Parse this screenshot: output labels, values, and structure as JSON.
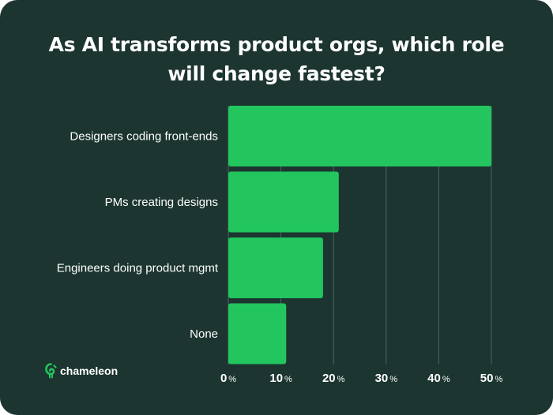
{
  "title": "As AI transforms product orgs, which role will change fastest?",
  "brand": {
    "name": "chameleon"
  },
  "colors": {
    "background": "#1c3530",
    "bar": "#22c55e",
    "grid": "#4f6460",
    "text": "#ffffff",
    "logo_accent": "#22c55e"
  },
  "icons": {
    "logo": "chameleon-logo-icon"
  },
  "chart_data": {
    "type": "bar",
    "orientation": "horizontal",
    "title": "As AI transforms product orgs, which role will change fastest?",
    "categories": [
      "Designers coding front-ends",
      "PMs creating designs",
      "Engineers doing product mgmt",
      "None"
    ],
    "values": [
      50,
      21,
      18,
      11
    ],
    "xlim": [
      0,
      50
    ],
    "ticks": [
      0,
      10,
      20,
      30,
      40,
      50
    ],
    "tick_suffix": "%",
    "xlabel": "",
    "ylabel": "",
    "grid": true,
    "legend": "none"
  }
}
